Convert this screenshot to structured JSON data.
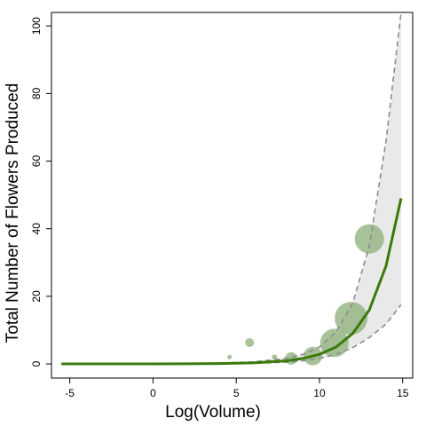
{
  "chart_data": {
    "type": "scatter",
    "title": "",
    "xlabel": "Log(Volume)",
    "ylabel": "Total Number of Flowers Produced",
    "xlim": [
      -6.1,
      15.6
    ],
    "ylim": [
      -4.2,
      104
    ],
    "x_ticks": [
      -5,
      0,
      5,
      10,
      15
    ],
    "y_ticks": [
      0,
      20,
      40,
      60,
      80,
      100
    ],
    "x_tick_labels": [
      "-5",
      "0",
      "5",
      "10",
      "15"
    ],
    "y_tick_labels": [
      "0",
      "20",
      "40",
      "60",
      "80",
      "100"
    ],
    "grid": false,
    "legend": "none",
    "points": [
      {
        "x": 4.6,
        "y": 2,
        "size": 0.5
      },
      {
        "x": 5.8,
        "y": 6.3,
        "size": 1
      },
      {
        "x": 7.3,
        "y": 2,
        "size": 0.6
      },
      {
        "x": 8.3,
        "y": 1.6,
        "size": 1.4
      },
      {
        "x": 9.6,
        "y": 2.3,
        "size": 2.1
      },
      {
        "x": 10.9,
        "y": 6.2,
        "size": 3.2
      },
      {
        "x": 11.9,
        "y": 13.5,
        "size": 3.7
      },
      {
        "x": 13.0,
        "y": 37,
        "size": 3.3
      }
    ],
    "fit_line": {
      "x": [
        -5.5,
        -4,
        -2,
        0,
        2,
        4,
        6,
        8,
        9,
        10,
        11,
        12,
        13,
        14,
        14.9
      ],
      "y": [
        0,
        0,
        0,
        0,
        0.02,
        0.1,
        0.3,
        0.9,
        1.6,
        2.8,
        5,
        9,
        16,
        29,
        49
      ]
    },
    "ci_upper": {
      "x": [
        -5.5,
        -4,
        -2,
        0,
        2,
        4,
        6,
        8,
        9,
        10,
        11,
        12,
        13,
        14,
        14.9
      ],
      "y": [
        0,
        0,
        0,
        0,
        0.04,
        0.2,
        0.6,
        1.6,
        2.8,
        5,
        9.5,
        18,
        35,
        66,
        104
      ]
    },
    "ci_lower": {
      "x": [
        -5.5,
        -4,
        -2,
        0,
        2,
        4,
        6,
        8,
        9,
        10,
        11,
        12,
        13,
        14,
        14.9
      ],
      "y": [
        0,
        0,
        0,
        0,
        0.01,
        0.05,
        0.15,
        0.5,
        0.9,
        1.6,
        2.8,
        4.8,
        7.8,
        11.8,
        17.5
      ]
    },
    "colors": {
      "point_fill": "#8fb27d",
      "fit_line": "#3a7a0a",
      "ci_line": "#8c8c8c",
      "ci_band": "#e9e9e9"
    }
  }
}
